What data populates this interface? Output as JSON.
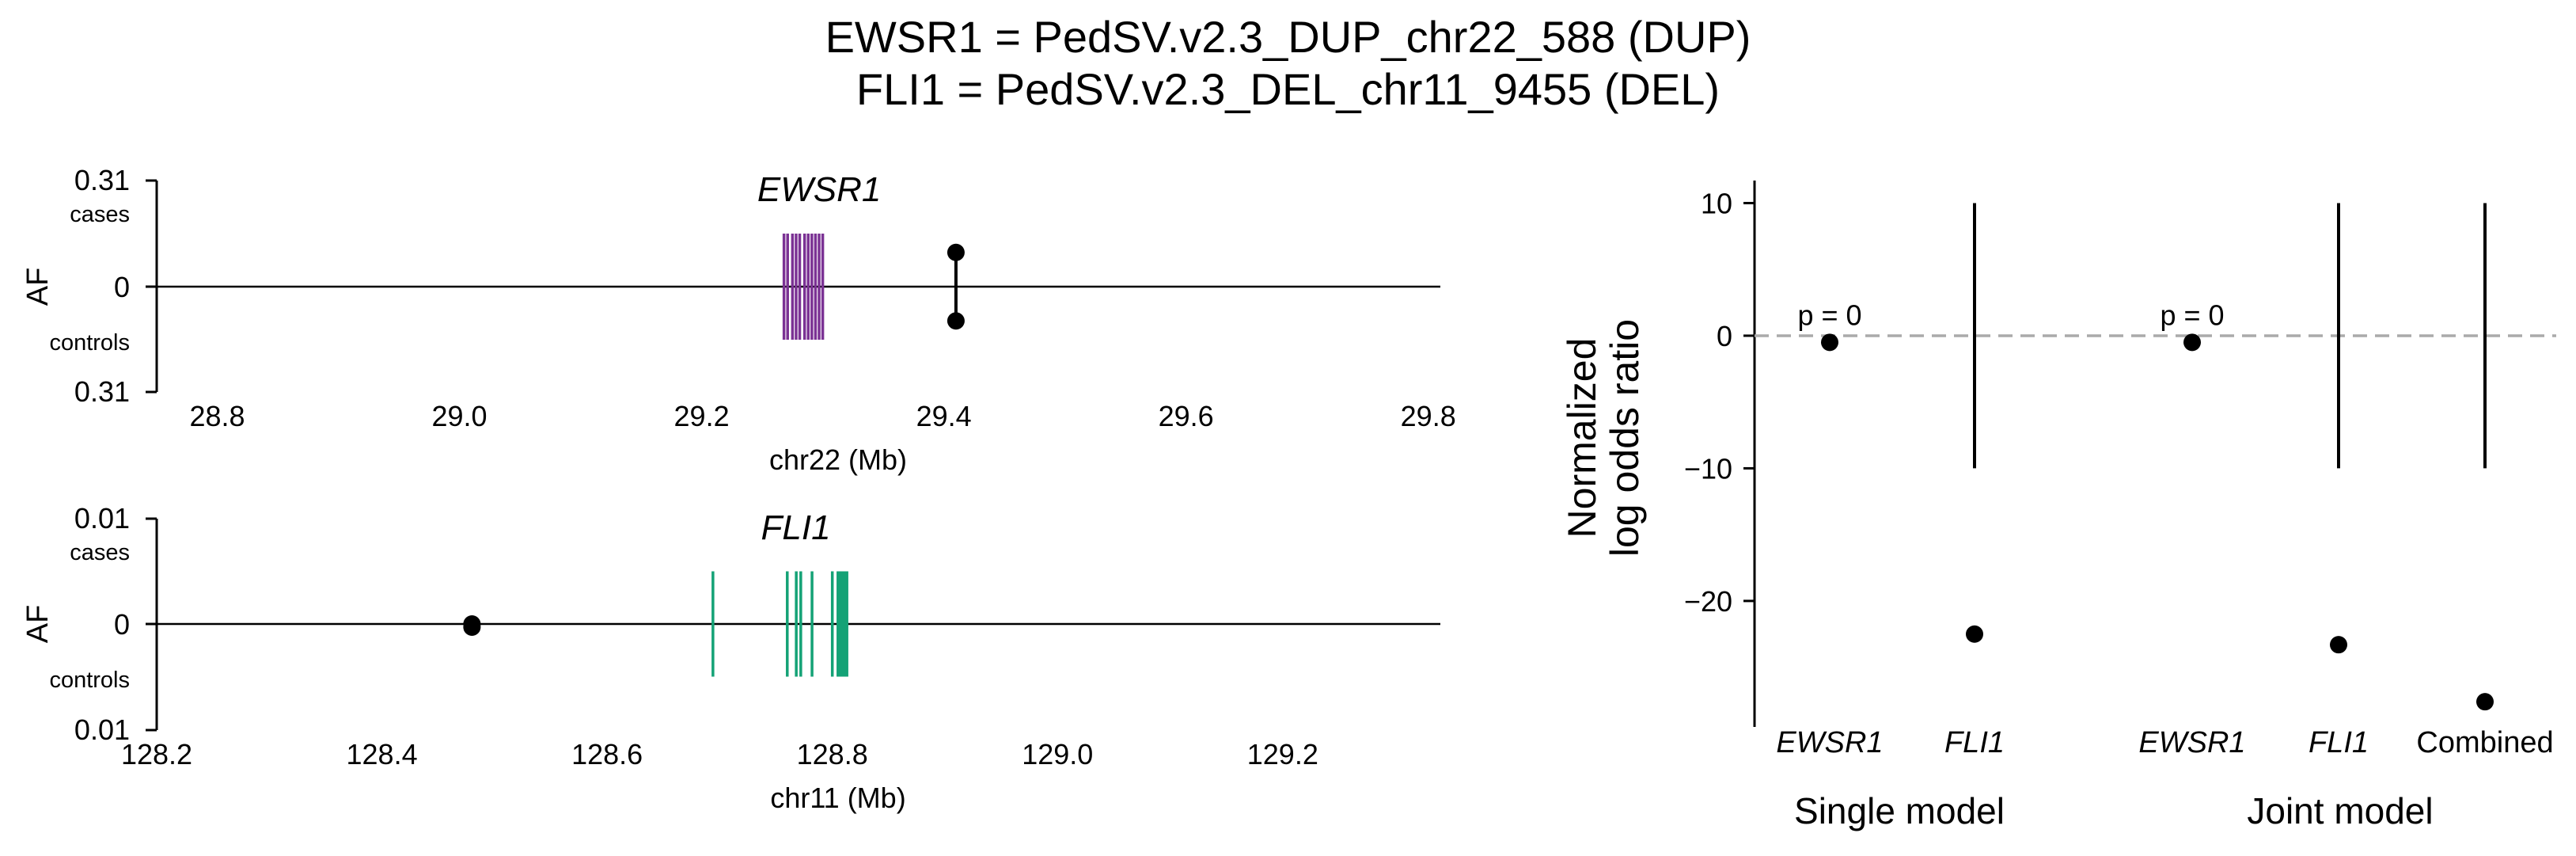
{
  "title": {
    "line1": "EWSR1 = PedSV.v2.3_DUP_chr22_588 (DUP)",
    "line2": "FLI1 = PedSV.v2.3_DEL_chr11_9455 (DEL)"
  },
  "colors": {
    "EWSR1": "#7b3294",
    "FLI1": "#14a276",
    "zero_line": "#aaaaaa"
  },
  "chart_data": [
    {
      "type": "scatter",
      "panel": "EWSR1 locus",
      "gene": "EWSR1",
      "xlabel": "chr22 (Mb)",
      "ylabel": "AF",
      "xlim": [
        28.75,
        29.81
      ],
      "xticks": [
        "28.8",
        "29.0",
        "29.2",
        "29.4",
        "29.6",
        "29.8"
      ],
      "y_top_label": "0.31",
      "y_top_sublabel": "cases",
      "y_zero_label": "0",
      "y_bottom_sublabel": "controls",
      "y_bottom_label": "0.31",
      "af_max": 0.31,
      "exons_mb": [
        29.268,
        29.271,
        29.275,
        29.278,
        29.281,
        29.285,
        29.288,
        29.291,
        29.294,
        29.297,
        29.3
      ],
      "variant": {
        "x": 29.41,
        "af_cases": 0.1,
        "af_controls": 0.1
      }
    },
    {
      "type": "scatter",
      "panel": "FLI1 locus",
      "gene": "FLI1",
      "xlabel": "chr11 (Mb)",
      "ylabel": "AF",
      "xlim": [
        128.2,
        129.34
      ],
      "xticks": [
        "128.2",
        "128.4",
        "128.6",
        "128.8",
        "129.0",
        "129.2"
      ],
      "y_top_label": "0.01",
      "y_top_sublabel": "cases",
      "y_zero_label": "0",
      "y_bottom_sublabel": "controls",
      "y_bottom_label": "0.01",
      "af_max": 0.01,
      "exons_mb": [
        128.694,
        128.76,
        128.768,
        128.772,
        128.782,
        128.8,
        128.805,
        128.807,
        128.809,
        128.811,
        128.813
      ],
      "variant": {
        "x": 128.48,
        "af_cases": 0.0,
        "af_controls": 0.0003
      }
    },
    {
      "type": "scatter",
      "panel": "log odds ratios",
      "ylabel_line1": "Normalized",
      "ylabel_line2": "log odds ratio",
      "ylim": [
        -29.5,
        11.7
      ],
      "yticks": [
        {
          "value": 10,
          "label": "10"
        },
        {
          "value": 0,
          "label": "0"
        },
        {
          "value": -10,
          "label": "−10"
        },
        {
          "value": -20,
          "label": "−20"
        }
      ],
      "reference_line": 0,
      "groups": [
        "Single model",
        "Joint model"
      ],
      "categories": [
        "EWSR1",
        "FLI1",
        "EWSR1",
        "FLI1",
        "Combined"
      ],
      "category_group": [
        0,
        0,
        1,
        1,
        1
      ],
      "category_italic": [
        true,
        true,
        true,
        true,
        false
      ],
      "points": [
        {
          "y": -0.5,
          "ci": null,
          "annotation": "p = 0"
        },
        {
          "y": -22.5,
          "ci": [
            -10,
            10
          ],
          "annotation": ""
        },
        {
          "y": -0.5,
          "ci": null,
          "annotation": "p = 0"
        },
        {
          "y": -23.3,
          "ci": [
            -10,
            10
          ],
          "annotation": ""
        },
        {
          "y": -27.6,
          "ci": [
            -10,
            10
          ],
          "annotation": ""
        }
      ]
    }
  ]
}
